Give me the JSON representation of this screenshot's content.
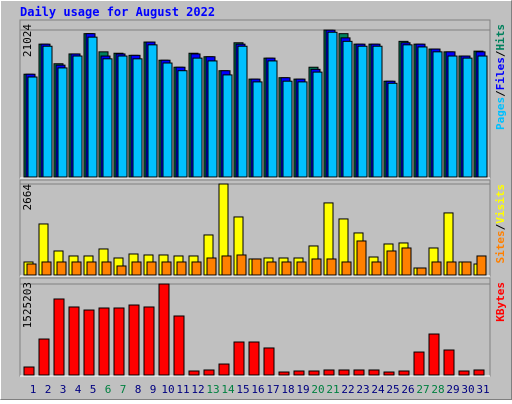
{
  "title": "Daily usage for August 2022",
  "separator": "/",
  "chart_data": [
    {
      "type": "bar",
      "ylim": [
        0,
        21024
      ],
      "yticks": [
        21024
      ],
      "series": [
        {
          "name": "Hits",
          "color": "#00805C",
          "values": [
            14700,
            19000,
            16200,
            17600,
            20500,
            17900,
            17700,
            17400,
            19300,
            16700,
            15700,
            17700,
            17200,
            15200,
            19200,
            14000,
            17000,
            14200,
            14000,
            15700,
            21024,
            20500,
            19000,
            19000,
            13700,
            19400,
            19000,
            18300,
            17900,
            17300,
            18000
          ]
        },
        {
          "name": "Files",
          "color": "#0000FF",
          "values": [
            14700,
            19000,
            16000,
            17600,
            20500,
            17300,
            17600,
            17400,
            19300,
            16700,
            15700,
            17600,
            17200,
            15200,
            19000,
            14000,
            17000,
            14200,
            14000,
            15400,
            21000,
            19900,
            19000,
            19000,
            13700,
            19200,
            19000,
            18300,
            17900,
            17300,
            17900
          ]
        },
        {
          "name": "Pages",
          "color": "#00C0FF",
          "values": [
            14300,
            18700,
            15600,
            17300,
            20000,
            16900,
            17300,
            16900,
            18900,
            16300,
            15200,
            17000,
            16600,
            14600,
            18700,
            13600,
            16600,
            13700,
            13600,
            15000,
            20700,
            19400,
            18700,
            18700,
            13400,
            18900,
            18600,
            17900,
            17300,
            17000,
            17300
          ]
        }
      ]
    },
    {
      "type": "bar",
      "ylim": [
        0,
        2664
      ],
      "yticks": [
        2664
      ],
      "series": [
        {
          "name": "Visits",
          "color": "#FFFF00",
          "values": [
            381,
            1494,
            703,
            557,
            557,
            762,
            498,
            615,
            586,
            586,
            557,
            557,
            1172,
            2664,
            1699,
            469,
            498,
            498,
            498,
            850,
            2110,
            1641,
            1231,
            527,
            908,
            938,
            205,
            791,
            1817,
            381,
            322
          ]
        },
        {
          "name": "Sites",
          "color": "#FF8000",
          "values": [
            322,
            381,
            381,
            381,
            381,
            381,
            264,
            381,
            381,
            381,
            381,
            381,
            498,
            557,
            586,
            469,
            381,
            381,
            381,
            469,
            469,
            381,
            996,
            381,
            703,
            791,
            205,
            381,
            381,
            381,
            557
          ]
        }
      ]
    },
    {
      "type": "bar",
      "ylim": [
        0,
        1525203
      ],
      "yticks": [
        1525203
      ],
      "categories": [
        "1",
        "2",
        "3",
        "4",
        "5",
        "6",
        "7",
        "8",
        "9",
        "10",
        "11",
        "12",
        "13",
        "14",
        "15",
        "16",
        "17",
        "18",
        "19",
        "20",
        "21",
        "22",
        "23",
        "24",
        "25",
        "26",
        "27",
        "28",
        "29",
        "30",
        "31"
      ],
      "category_colors": [
        "#000080",
        "#000080",
        "#000080",
        "#000080",
        "#000080",
        "#008040",
        "#008040",
        "#000080",
        "#000080",
        "#000080",
        "#000080",
        "#000080",
        "#008040",
        "#008040",
        "#000080",
        "#000080",
        "#000080",
        "#000080",
        "#000080",
        "#008040",
        "#008040",
        "#000080",
        "#000080",
        "#000080",
        "#000080",
        "#000080",
        "#008040",
        "#008040",
        "#000080",
        "#000080",
        "#000080"
      ],
      "series": [
        {
          "name": "KBytes",
          "color": "#FF0000",
          "values": [
            134000,
            603000,
            1274000,
            1140000,
            1089000,
            1123000,
            1123000,
            1173000,
            1140000,
            1525203,
            989000,
            67000,
            84000,
            184000,
            553000,
            553000,
            453000,
            50000,
            67000,
            67000,
            84000,
            84000,
            84000,
            84000,
            50000,
            67000,
            385000,
            687000,
            419000,
            67000,
            84000
          ]
        }
      ]
    }
  ]
}
